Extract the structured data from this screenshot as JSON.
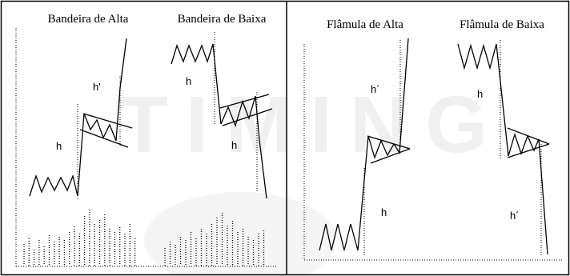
{
  "watermark": "TIMING",
  "panels": {
    "left": {
      "title_alta": "Bandeira de Alta",
      "title_baixa": "Bandeira de Baixa",
      "alta_h1": "h",
      "alta_h2": "h'",
      "baixa_h1": "h",
      "baixa_h2": "h"
    },
    "right": {
      "title_alta": "Flâmula de Alta",
      "title_baixa": "Flâmula de Baixa",
      "alta_h1": "h´",
      "alta_h2": "h",
      "baixa_h1": "h",
      "baixa_h2": "h´"
    }
  }
}
